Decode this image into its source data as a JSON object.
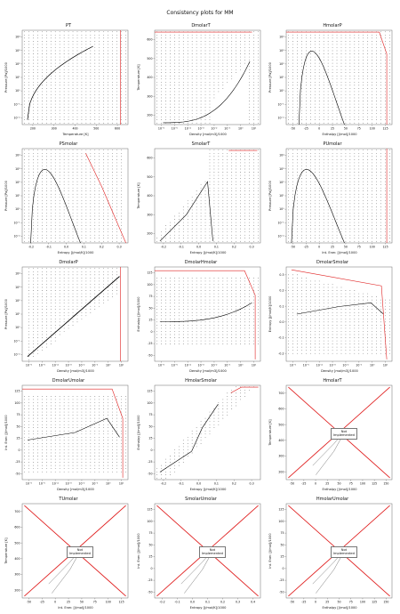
{
  "page": {
    "title": "Consistency plots for MM"
  },
  "colors": {
    "boundary": "#e02020",
    "dots": "#000000",
    "frame": "#6b6b6b"
  },
  "chart_data": [
    {
      "id": "PT",
      "title": "PT",
      "type": "scatter",
      "xlabel": "Temperature [K]",
      "ylabel": "Pressure [Pa]/1000",
      "xticks": [
        "200",
        "300",
        "400",
        "500",
        "600"
      ],
      "xlim": [
        180,
        700
      ],
      "yticks": [
        "10⁻²",
        "10⁻¹",
        "10⁰",
        "10¹",
        "10²",
        "10³",
        "10⁴"
      ],
      "yscale": "log",
      "curve_note": "saturation curve"
    },
    {
      "id": "DmolarT",
      "title": "DmolarT",
      "type": "scatter",
      "xlabel": "Density [mol/m3]/1000",
      "ylabel": "Temperature [K]",
      "xticks": [
        "10⁻⁶",
        "10⁻⁵",
        "10⁻⁴",
        "10⁻³",
        "10⁻²",
        "10⁻¹",
        "10⁰",
        "10¹"
      ],
      "xscale": "log",
      "yticks": [
        "200",
        "300",
        "400",
        "500",
        "600"
      ],
      "ylim": [
        190,
        690
      ]
    },
    {
      "id": "HmolarP",
      "title": "HmolarP",
      "type": "scatter",
      "xlabel": "Enthalpy [J/mol]/1000",
      "ylabel": "Pressure [Pa]/1000",
      "xticks": [
        "-50",
        "-25",
        "0",
        "25",
        "50",
        "75",
        "100",
        "125"
      ],
      "xlim": [
        -60,
        135
      ],
      "yticks": [
        "10⁻²",
        "10⁻¹",
        "10⁰",
        "10¹",
        "10²",
        "10³",
        "10⁴"
      ],
      "yscale": "log"
    },
    {
      "id": "PSmolar",
      "title": "PSmolar",
      "type": "scatter",
      "xlabel": "Entropy [J/mol/K]/1000",
      "ylabel": "Pressure [Pa]/1000",
      "xticks": [
        "-0.2",
        "-0.1",
        "0.0",
        "0.1",
        "0.2",
        "0.3"
      ],
      "xlim": [
        -0.22,
        0.37
      ],
      "yticks": [
        "10⁻²",
        "10⁻¹",
        "10⁰",
        "10¹",
        "10²",
        "10³",
        "10⁴"
      ],
      "yscale": "log"
    },
    {
      "id": "SmolarT",
      "title": "SmolarT",
      "type": "scatter",
      "xlabel": "Entropy [J/mol/K]/1000",
      "ylabel": "Temperature [K]",
      "xticks": [
        "-0.2",
        "-0.1",
        "0.0",
        "0.1",
        "0.2",
        "0.3"
      ],
      "xlim": [
        -0.22,
        0.37
      ],
      "yticks": [
        "200",
        "300",
        "400",
        "500",
        "600"
      ],
      "ylim": [
        190,
        690
      ]
    },
    {
      "id": "PUmolar",
      "title": "PUmolar",
      "type": "scatter",
      "xlabel": "Int. Ener. [J/mol]/1000",
      "ylabel": "Pressure [Pa]/1000",
      "xticks": [
        "-50",
        "-25",
        "0",
        "25",
        "50",
        "75",
        "100",
        "125"
      ],
      "xlim": [
        -60,
        135
      ],
      "yticks": [
        "10⁻²",
        "10⁻¹",
        "10⁰",
        "10¹",
        "10²",
        "10³",
        "10⁴"
      ],
      "yscale": "log"
    },
    {
      "id": "DmolarP",
      "title": "DmolarP",
      "type": "scatter",
      "xlabel": "Density [mol/m3]/1000",
      "ylabel": "Pressure [Pa]/1000",
      "xticks": [
        "10⁻⁶",
        "10⁻⁵",
        "10⁻⁴",
        "10⁻³",
        "10⁻²",
        "10⁻¹",
        "10⁰",
        "10¹"
      ],
      "xscale": "log",
      "yticks": [
        "10⁻²",
        "10⁻¹",
        "10⁰",
        "10¹",
        "10²",
        "10³",
        "10⁴"
      ],
      "yscale": "log"
    },
    {
      "id": "DmolarHmolar",
      "title": "DmolarHmolar",
      "type": "scatter",
      "xlabel": "Density [mol/m3]/1000",
      "ylabel": "Enthalpy [J/mol]/1000",
      "xticks": [
        "10⁻⁶",
        "10⁻⁵",
        "10⁻⁴",
        "10⁻³",
        "10⁻²",
        "10⁻¹",
        "10⁰",
        "10¹"
      ],
      "xscale": "log",
      "yticks": [
        "-50",
        "-25",
        "0",
        "25",
        "50",
        "75",
        "100",
        "125"
      ],
      "ylim": [
        -60,
        130
      ]
    },
    {
      "id": "DmolarSmolar",
      "title": "DmolarSmolar",
      "type": "scatter",
      "xlabel": "Density [mol/m3]/1000",
      "ylabel": "Entropy [J/mol/K]/1000",
      "xticks": [
        "10⁻⁶",
        "10⁻⁵",
        "10⁻⁴",
        "10⁻³",
        "10⁻²",
        "10⁻¹",
        "10⁰",
        "10¹"
      ],
      "xscale": "log",
      "yticks": [
        "-0.2",
        "-0.1",
        "0.0",
        "0.1",
        "0.2",
        "0.3"
      ],
      "ylim": [
        -0.21,
        0.37
      ]
    },
    {
      "id": "DmolarUmolar",
      "title": "DmolarUmolar",
      "type": "scatter",
      "xlabel": "Density [mol/m3]/1000",
      "ylabel": "Int. Ener. [J/mol]/1000",
      "xticks": [
        "10⁻⁶",
        "10⁻⁵",
        "10⁻⁴",
        "10⁻³",
        "10⁻²",
        "10⁻¹",
        "10⁰",
        "10¹"
      ],
      "xscale": "log",
      "yticks": [
        "-50",
        "-25",
        "0",
        "25",
        "50",
        "75",
        "100",
        "125"
      ],
      "ylim": [
        -60,
        130
      ]
    },
    {
      "id": "HmolarSmolar",
      "title": "HmolarSmolar",
      "type": "scatter",
      "xlabel": "Entropy [J/mol/K]/1000",
      "ylabel": "Enthalpy [J/mol]/1000",
      "xticks": [
        "-0.2",
        "-0.1",
        "0.0",
        "0.1",
        "0.2",
        "0.3"
      ],
      "xlim": [
        -0.22,
        0.37
      ],
      "yticks": [
        "-50",
        "-25",
        "0",
        "25",
        "50",
        "75",
        "100",
        "125"
      ],
      "ylim": [
        -60,
        130
      ]
    },
    {
      "id": "HmolarT",
      "title": "HmolarT",
      "type": "scatter",
      "xlabel": "Enthalpy [J/mol]/1000",
      "ylabel": "Temperature [K]",
      "xticks": [
        "-50",
        "-25",
        "0",
        "25",
        "50",
        "75",
        "100",
        "125",
        "150"
      ],
      "xlim": [
        -60,
        152
      ],
      "yticks": [
        "200",
        "300",
        "400",
        "500",
        "600",
        "700"
      ],
      "ylim": [
        180,
        710
      ],
      "note": "Not\nImplemented"
    },
    {
      "id": "TUmolar",
      "title": "TUmolar",
      "type": "scatter",
      "xlabel": "Int. Ener. [J/mol]/1000",
      "ylabel": "Temperature [K]",
      "xticks": [
        "-50",
        "-25",
        "0",
        "25",
        "50",
        "75",
        "100",
        "125"
      ],
      "xlim": [
        -60,
        135
      ],
      "yticks": [
        "200",
        "300",
        "400",
        "500",
        "600",
        "700"
      ],
      "ylim": [
        180,
        710
      ],
      "note": "Not\nImplemented"
    },
    {
      "id": "SmolarUmolar",
      "title": "SmolarUmolar",
      "type": "scatter",
      "xlabel": "Entropy [J/mol/K]/1000",
      "ylabel": "Int. Ener. [J/mol]/1000",
      "xticks": [
        "-0.2",
        "-0.1",
        "0.0",
        "0.1",
        "0.2",
        "0.3",
        "0.4"
      ],
      "xlim": [
        -0.22,
        0.42
      ],
      "yticks": [
        "-50",
        "-25",
        "0",
        "25",
        "50",
        "75",
        "100",
        "125"
      ],
      "ylim": [
        -60,
        130
      ],
      "note": "Not\nImplemented"
    },
    {
      "id": "HmolarUmolar",
      "title": "HmolarUmolar",
      "type": "scatter",
      "xlabel": "Enthalpy [J/mol]/1000",
      "ylabel": "Int. Ener. [J/mol]/1000",
      "xticks": [
        "-50",
        "-25",
        "0",
        "25",
        "50",
        "75",
        "100",
        "125",
        "150"
      ],
      "xlim": [
        -60,
        152
      ],
      "yticks": [
        "-50",
        "-25",
        "0",
        "25",
        "50",
        "75",
        "100",
        "125"
      ],
      "ylim": [
        -60,
        130
      ],
      "note": "Not\nImplemented"
    }
  ]
}
